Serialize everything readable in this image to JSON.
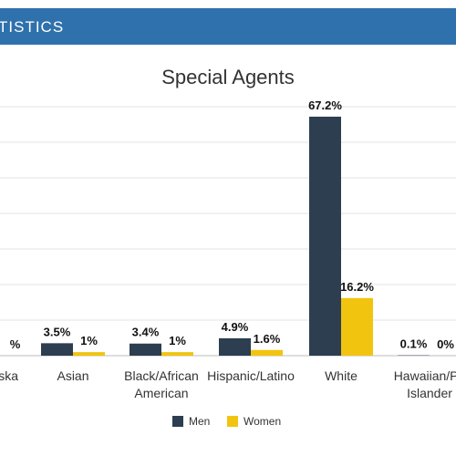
{
  "header": {
    "title": "TISTICS"
  },
  "chart_data": {
    "type": "bar",
    "title": "Special Agents",
    "categories": [
      [
        "Alaska",
        ""
      ],
      [
        "Asian"
      ],
      [
        "Black/African",
        "American"
      ],
      [
        "Hispanic/Latino"
      ],
      [
        "White"
      ],
      [
        "Hawaiian/Pa",
        "Islander"
      ]
    ],
    "series": [
      {
        "name": "Men",
        "color": "#2c3e50",
        "values": [
          null,
          3.5,
          3.4,
          4.9,
          67.2,
          0.1
        ],
        "labels": [
          "",
          "3.5%",
          "3.4%",
          "4.9%",
          "67.2%",
          "0.1%"
        ]
      },
      {
        "name": "Women",
        "color": "#f1c40f",
        "values": [
          null,
          1,
          1,
          1.6,
          16.2,
          0
        ],
        "labels": [
          "%",
          "1%",
          "1%",
          "1.6%",
          "16.2%",
          "0%"
        ]
      }
    ],
    "ylim": [
      0,
      70
    ],
    "grid": true,
    "legend": "bottom"
  }
}
